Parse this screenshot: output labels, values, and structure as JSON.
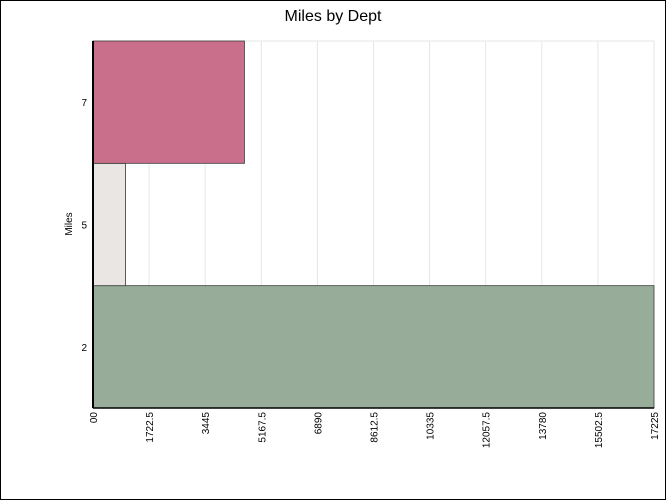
{
  "chart_data": {
    "type": "bar",
    "orientation": "horizontal",
    "title": "Miles by Dept",
    "xlabel": "",
    "ylabel": "Miles",
    "categories": [
      "2",
      "5",
      "7"
    ],
    "values": [
      17225,
      1000,
      4650
    ],
    "bar_colors": [
      "#97ad9a",
      "#e9e6e3",
      "#c96f8b"
    ],
    "xlim": [
      0,
      17225
    ],
    "x_ticks": [
      "00",
      "1722.5",
      "3445",
      "5167.5",
      "6890",
      "8612.5",
      "10335",
      "12057.5",
      "13780",
      "15502.5",
      "17225"
    ],
    "grid": true,
    "legend": "none"
  }
}
